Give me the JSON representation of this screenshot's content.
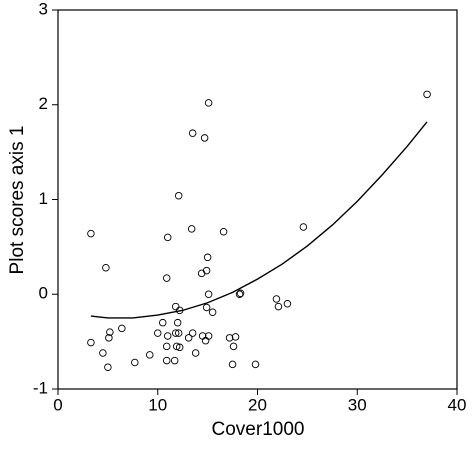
{
  "chart_data": {
    "type": "scatter",
    "x_label": "Cover1000",
    "y_label": "Plot scores axis 1",
    "xlim": [
      0,
      40
    ],
    "ylim": [
      -1,
      3
    ],
    "xticks": [
      0,
      10,
      20,
      30,
      40
    ],
    "yticks": [
      -1,
      0,
      1,
      2,
      3
    ],
    "color": "#000000",
    "x": [
      3.3,
      4.8,
      15.1,
      13.5,
      14.7,
      37.0,
      12.1,
      11.0,
      13.4,
      16.6,
      24.6,
      15.0,
      14.9,
      14.4,
      10.9,
      15.1,
      18.3,
      18.2,
      21.9,
      22.1,
      23.0,
      11.8,
      12.2,
      14.9,
      15.5,
      10.5,
      12.0,
      5.2,
      6.4,
      10.0,
      11.0,
      11.8,
      12.1,
      13.5,
      14.5,
      15.1,
      13.1,
      17.2,
      17.8,
      3.3,
      5.1,
      10.9,
      12.2,
      11.9,
      14.8,
      17.6,
      4.5,
      13.8,
      9.2,
      10.9,
      11.7,
      7.7,
      5.0,
      17.5,
      19.8
    ],
    "values": [
      0.64,
      0.28,
      2.02,
      1.7,
      1.65,
      2.11,
      1.04,
      0.6,
      0.69,
      0.66,
      0.71,
      0.39,
      0.25,
      0.22,
      0.17,
      0.0,
      0.01,
      0.0,
      -0.05,
      -0.13,
      -0.1,
      -0.13,
      -0.17,
      -0.14,
      -0.19,
      -0.3,
      -0.3,
      -0.4,
      -0.36,
      -0.41,
      -0.44,
      -0.41,
      -0.41,
      -0.41,
      -0.44,
      -0.44,
      -0.46,
      -0.46,
      -0.45,
      -0.51,
      -0.46,
      -0.55,
      -0.56,
      -0.55,
      -0.49,
      -0.55,
      -0.62,
      -0.62,
      -0.64,
      -0.7,
      -0.7,
      -0.72,
      -0.77,
      -0.74,
      -0.74
    ],
    "curve": {
      "type": "line",
      "color": "#000000",
      "x": [
        3.3,
        5,
        7.5,
        10,
        12.5,
        15,
        17.5,
        20,
        22.5,
        25,
        27.5,
        30,
        32.5,
        35,
        37
      ],
      "values": [
        -0.23,
        -0.25,
        -0.25,
        -0.22,
        -0.17,
        -0.09,
        0.02,
        0.16,
        0.32,
        0.51,
        0.73,
        0.98,
        1.26,
        1.56,
        1.82
      ]
    }
  }
}
